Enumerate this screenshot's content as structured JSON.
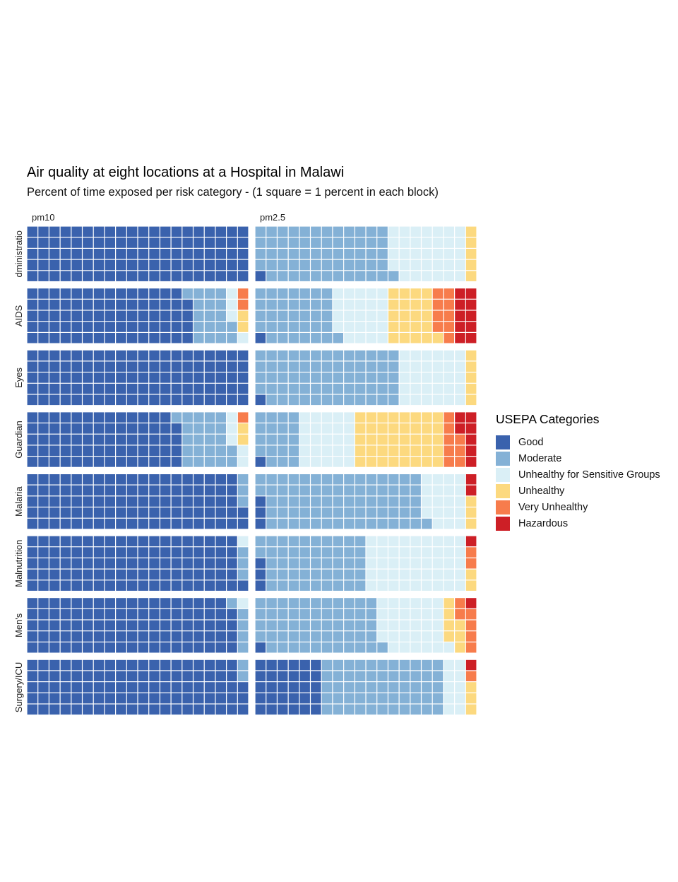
{
  "chart_data": {
    "type": "waffle",
    "title": "Air quality at eight locations at a Hospital in Malawi",
    "subtitle": "Percent of time exposed per risk category - (1 square = 1 percent in each block)",
    "panels": [
      "pm10",
      "pm2.5"
    ],
    "rows": [
      "dministratio",
      "AIDS",
      "Eyes",
      "Guardian",
      "Malaria",
      "Malnutrition",
      "Men's",
      "Surgery/ICU"
    ],
    "legend": {
      "title": "USEPA Categories",
      "position": "right",
      "categories": [
        {
          "name": "Good",
          "color": "#3a62ad"
        },
        {
          "name": "Moderate",
          "color": "#84b1d6"
        },
        {
          "name": "Unhealthy for Sensitive Groups",
          "color": "#daeff6"
        },
        {
          "name": "Unhealthy",
          "color": "#fcd97f"
        },
        {
          "name": "Very Unhealthy",
          "color": "#f77c4c"
        },
        {
          "name": "Hazardous",
          "color": "#cd1f26"
        }
      ]
    },
    "values": {
      "pm10": [
        [
          100,
          0,
          0,
          0,
          0,
          0
        ],
        [
          74,
          18,
          4,
          2,
          2,
          0
        ],
        [
          100,
          0,
          0,
          0,
          0,
          0
        ],
        [
          69,
          23,
          5,
          2,
          1,
          1
        ],
        [
          97,
          3,
          0,
          0,
          0,
          0
        ],
        [
          96,
          3,
          1,
          0,
          0,
          0
        ],
        [
          94,
          5,
          1,
          0,
          0,
          0
        ],
        [
          98,
          2,
          0,
          0,
          0,
          0
        ]
      ],
      "pm2.5": [
        [
          1,
          60,
          34,
          5,
          0,
          0
        ],
        [
          1,
          35,
          24,
          21,
          9,
          10
        ],
        [
          1,
          64,
          30,
          5,
          0,
          0
        ],
        [
          1,
          19,
          25,
          40,
          8,
          7
        ],
        [
          3,
          73,
          19,
          3,
          0,
          2
        ],
        [
          3,
          47,
          45,
          2,
          2,
          1
        ],
        [
          1,
          55,
          30,
          7,
          6,
          1
        ],
        [
          30,
          55,
          10,
          3,
          1,
          1
        ]
      ]
    }
  }
}
